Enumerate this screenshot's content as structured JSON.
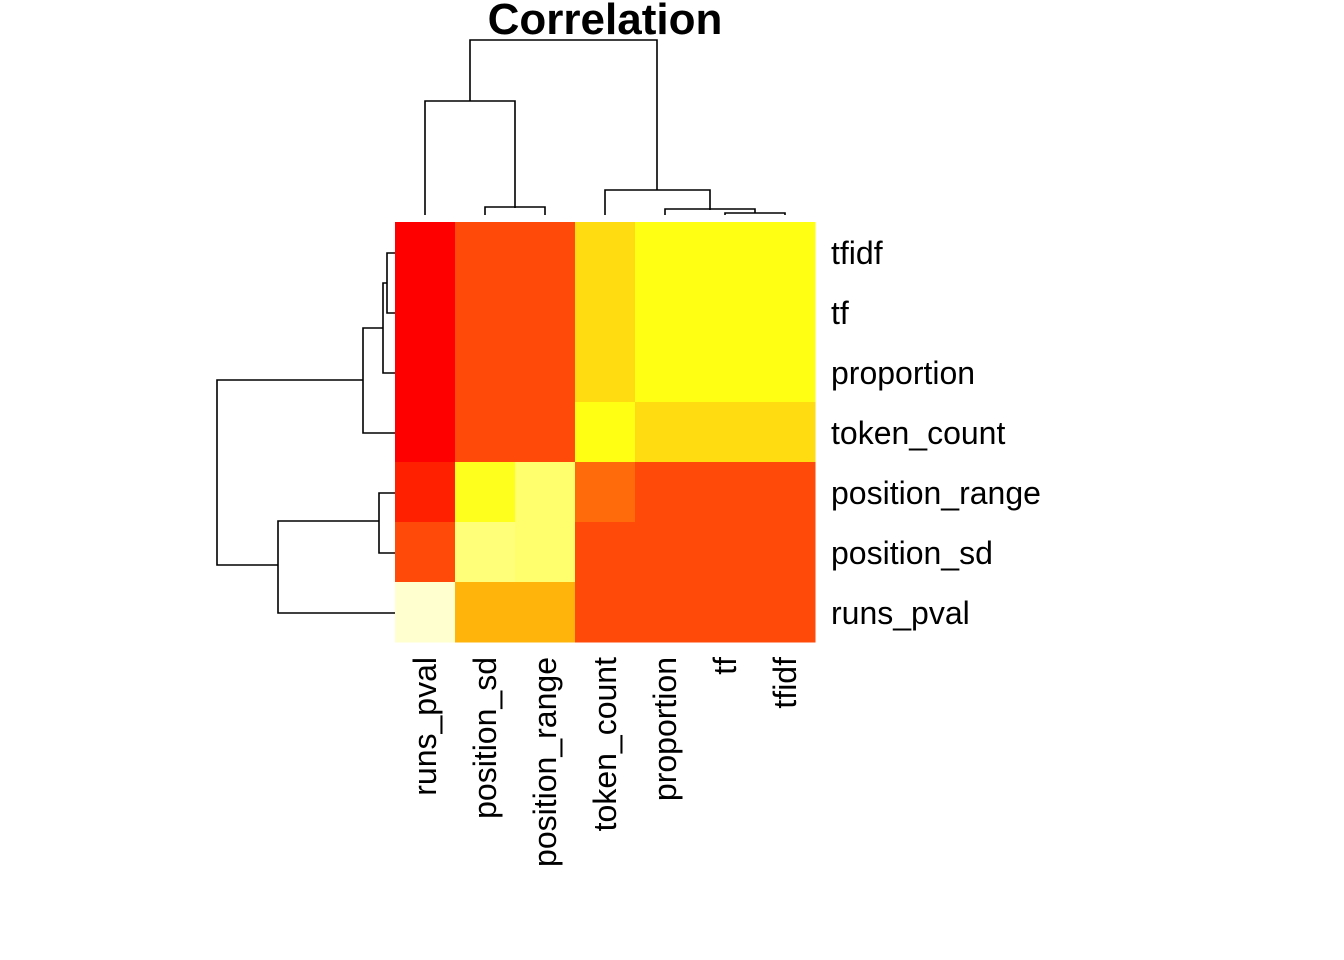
{
  "chart_data": {
    "type": "heatmap",
    "title": "Correlation",
    "xlabel": "",
    "ylabel": "",
    "columns": [
      "runs_pval",
      "position_sd",
      "position_range",
      "token_count",
      "proportion",
      "tf",
      "tfidf"
    ],
    "rows": [
      "tfidf",
      "tf",
      "proportion",
      "token_count",
      "position_range",
      "position_sd",
      "runs_pval"
    ],
    "palette": "heat",
    "cells": [
      [
        "#FF0000",
        "#FF4A0A",
        "#FF4A0A",
        "#FFDB12",
        "#FFFF14",
        "#FFFF14",
        "#FFFF14"
      ],
      [
        "#FF0000",
        "#FF4A0A",
        "#FF4A0A",
        "#FFDB12",
        "#FFFF14",
        "#FFFF14",
        "#FFFF14"
      ],
      [
        "#FF0000",
        "#FF4A0A",
        "#FF4A0A",
        "#FFDB12",
        "#FFFF14",
        "#FFFF14",
        "#FFFF14"
      ],
      [
        "#FF0000",
        "#FF4A0A",
        "#FF4A0A",
        "#FFFF14",
        "#FFDB12",
        "#FFDB12",
        "#FFDB12"
      ],
      [
        "#FF2000",
        "#FFFF1E",
        "#FFFF6E",
        "#FF6A0A",
        "#FF4A0A",
        "#FF4A0A",
        "#FF4A0A"
      ],
      [
        "#FF4A0A",
        "#FFFF7A",
        "#FFFF6E",
        "#FF4A0A",
        "#FF4A0A",
        "#FF4A0A",
        "#FF4A0A"
      ],
      [
        "#FFFFD0",
        "#FFB40C",
        "#FFB40C",
        "#FF4A0A",
        "#FF4A0A",
        "#FF4A0A",
        "#FF4A0A"
      ]
    ],
    "dendrogram": "hierarchical clustering on rows and columns"
  }
}
